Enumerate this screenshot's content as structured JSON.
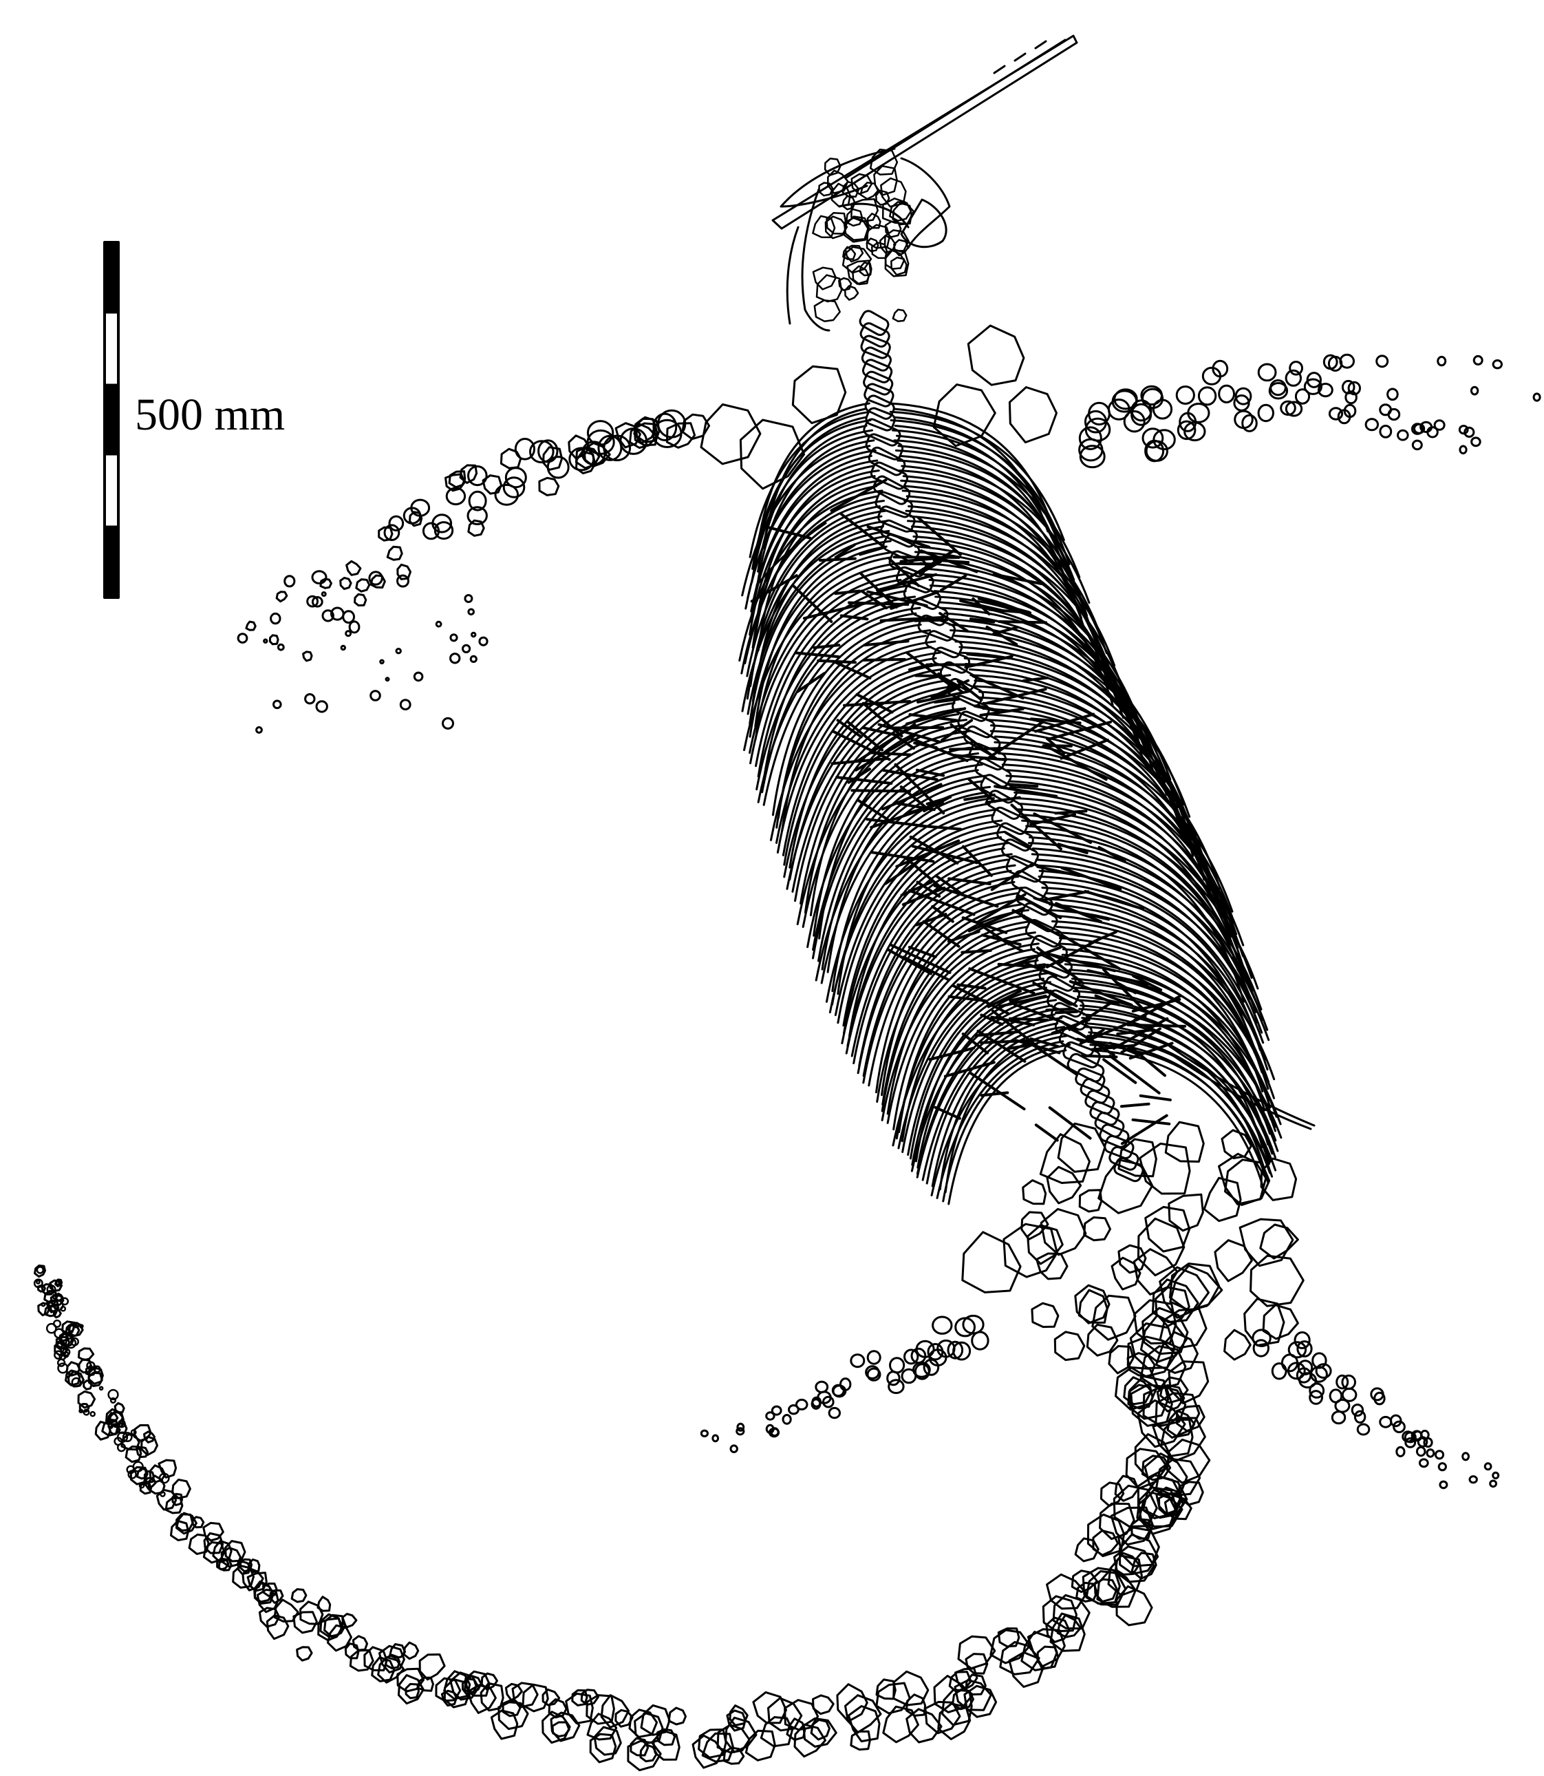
{
  "scale_bar": {
    "label": "500 mm"
  },
  "specimen": {
    "parts": [
      "skull",
      "rostrum",
      "forefins",
      "vertebral-column",
      "ribs",
      "gastralia",
      "hindfins",
      "tail"
    ]
  },
  "colors": {
    "ink": "#000000",
    "background": "#ffffff"
  }
}
